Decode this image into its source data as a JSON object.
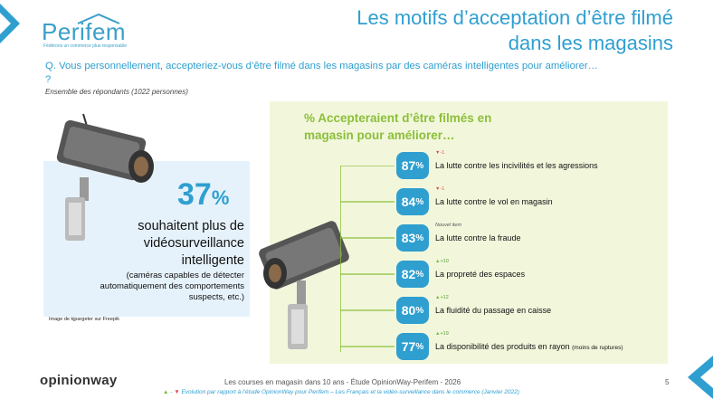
{
  "logo": {
    "word": "Perifem",
    "tagline": "Fédérons un commerce plus responsable"
  },
  "title": {
    "line1": "Les motifs d’acceptation d’être filmé",
    "line2": "dans les magasins"
  },
  "question": "Q. Vous personnellement, accepteriez-vous d’être filmé dans les magasins par des caméras intelligentes pour améliorer… ?",
  "base": "Ensemble des répondants (1022 personnes)",
  "left_panel": {
    "big_number": "37",
    "big_unit": "%",
    "main_text": "souhaitent plus de vidéosurveillance intelligente",
    "sub_text": "(caméras capables de détecter automatiquement des comportements suspects, etc.)",
    "image_credit": "Image de kjpargeter sur Freepik"
  },
  "right_panel": {
    "title": "% Accepteraient d’être filmés en magasin pour améliorer…",
    "items": [
      {
        "value": "87",
        "unit": "%",
        "label": "La lutte contre les incivilités et les agressions",
        "label_small": "",
        "evolution": "-1",
        "evolution_type": "down"
      },
      {
        "value": "84",
        "unit": "%",
        "label": "La lutte contre le vol en magasin",
        "label_small": "",
        "evolution": "-1",
        "evolution_type": "down"
      },
      {
        "value": "83",
        "unit": "%",
        "label": "La lutte contre la fraude",
        "label_small": "",
        "evolution": "Nouvel item",
        "evolution_type": "new"
      },
      {
        "value": "82",
        "unit": "%",
        "label": "La propreté des espaces",
        "label_small": "",
        "evolution": "+10",
        "evolution_type": "up"
      },
      {
        "value": "80",
        "unit": "%",
        "label": "La fluidité du passage en caisse",
        "label_small": "",
        "evolution": "+12",
        "evolution_type": "up"
      },
      {
        "value": "77",
        "unit": "%",
        "label": "La disponibilité des produits en rayon",
        "label_small": "(moins de ruptures)",
        "evolution": "+19",
        "evolution_type": "up"
      }
    ]
  },
  "footer": {
    "brand": "opinionway",
    "study": "Les courses en magasin dans 10 ans - Étude OpinionWay-Perifem - 2026",
    "page": "5",
    "evolution_legend": "Evolution par rapport à l’étude OpinionWay pour Perifem – Les Français et la vidéo-surveillance dans le commerce (Janvier 2022)"
  },
  "colors": {
    "accent_blue": "#2f9fd0",
    "accent_green": "#8cbf3a",
    "panel_blue": "#e6f2fb",
    "panel_green": "#f2f7dc"
  }
}
